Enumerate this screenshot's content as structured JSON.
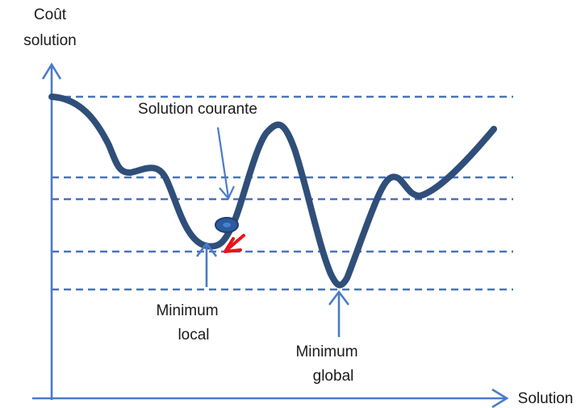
{
  "axes": {
    "y_label_line1": "Coût",
    "y_label_line2": "solution",
    "x_label": "Solution"
  },
  "annotations": {
    "current": "Solution courante",
    "local_line1": "Minimum",
    "local_line2": "local",
    "global_line1": "Minimum",
    "global_line2": "global"
  },
  "colors": {
    "axis": "#4a7bc8",
    "curve": "#2f4f7a",
    "dashed": "#4a72b8",
    "current_marker": "#2c5a9e",
    "move_arrow": "#e8141a",
    "text": "#1a1a1a"
  }
}
